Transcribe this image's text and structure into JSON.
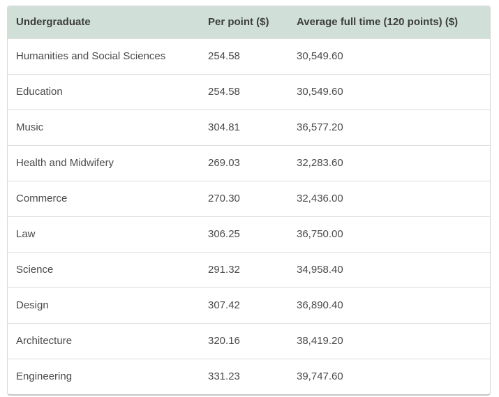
{
  "table": {
    "columns": [
      "Undergraduate",
      "Per point ($)",
      "Average full time (120 points) ($)"
    ],
    "rows": [
      [
        "Humanities and Social Sciences",
        "254.58",
        "30,549.60"
      ],
      [
        "Education",
        "254.58",
        "30,549.60"
      ],
      [
        "Music",
        "304.81",
        "36,577.20"
      ],
      [
        "Health and Midwifery",
        "269.03",
        "32,283.60"
      ],
      [
        "Commerce",
        "270.30",
        "32,436.00"
      ],
      [
        "Law",
        "306.25",
        "36,750.00"
      ],
      [
        "Science",
        "291.32",
        "34,958.40"
      ],
      [
        "Design",
        "307.42",
        "36,890.40"
      ],
      [
        "Architecture",
        "320.16",
        "38,419.20"
      ],
      [
        "Engineering",
        "331.23",
        "39,747.60"
      ]
    ]
  },
  "colors": {
    "header_bg": "#d0e0d8",
    "header_text": "#3d3d3d",
    "body_text": "#4a4a4a",
    "row_divider": "#dedede",
    "outer_border": "#d9d9d9",
    "bottom_border": "#c6c6c6",
    "page_bg": "#ffffff"
  }
}
